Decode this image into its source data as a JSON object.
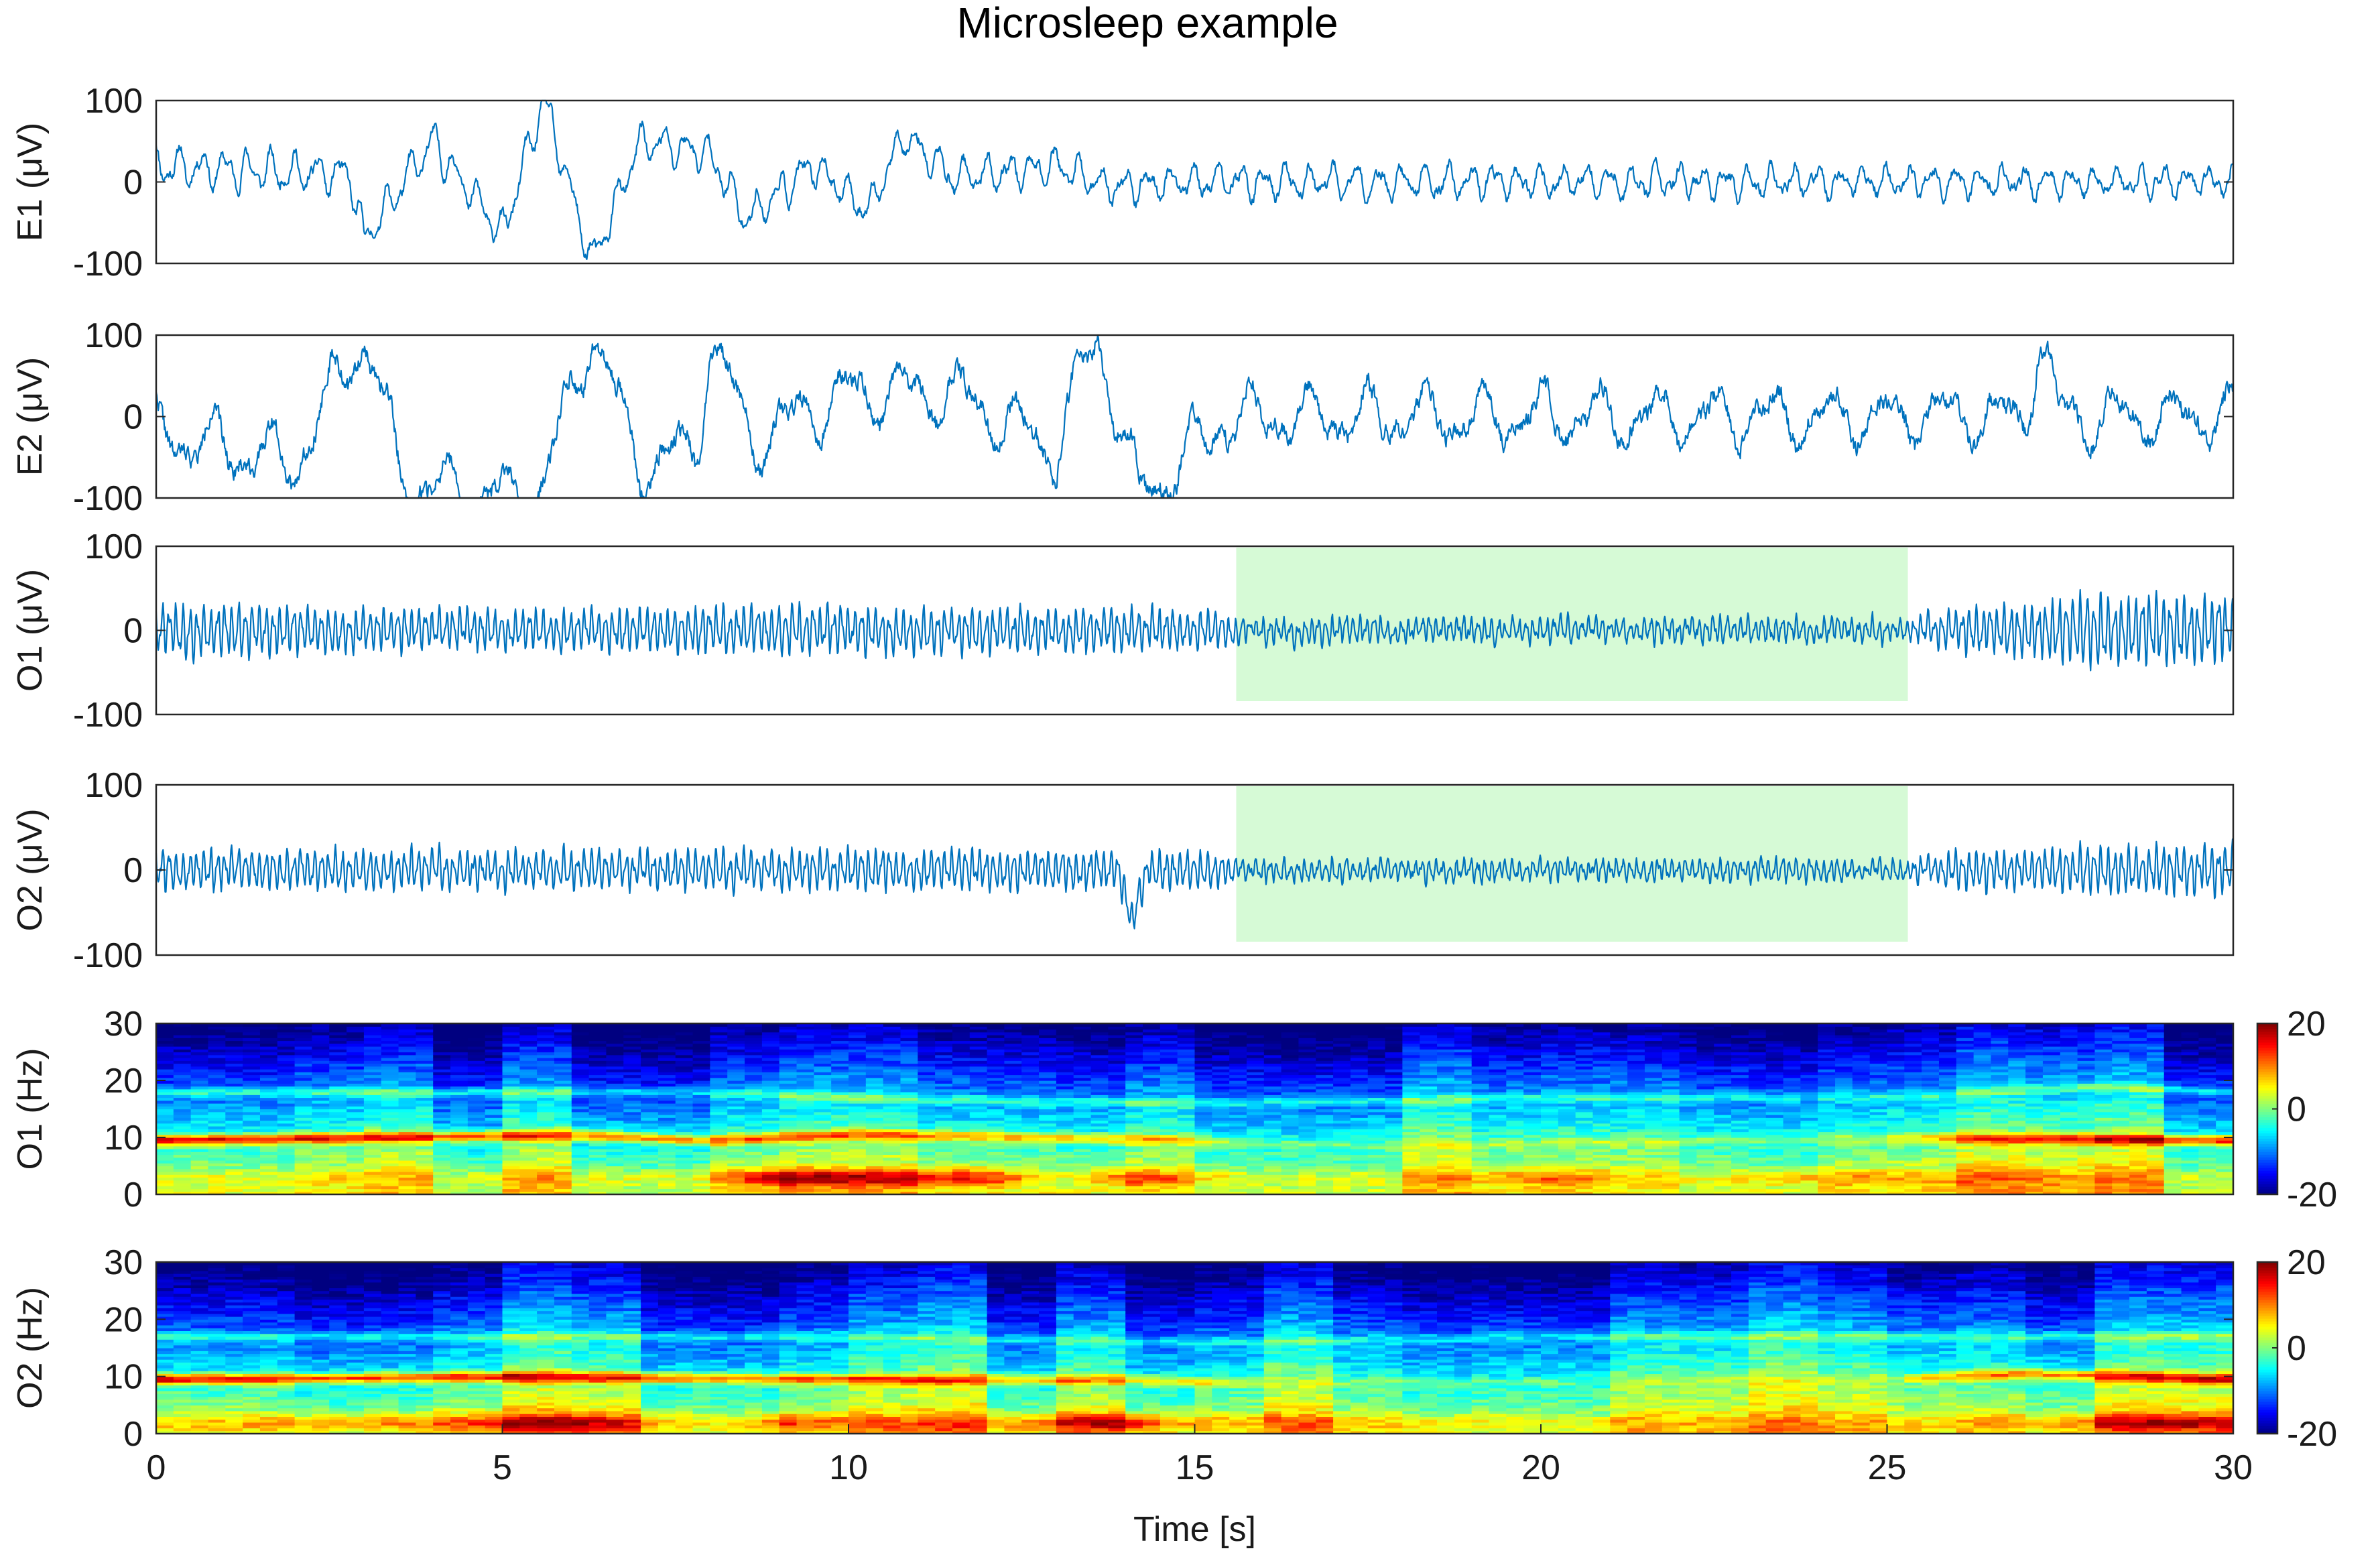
{
  "title": "Microsleep example",
  "colors": {
    "trace": "#0072BD",
    "highlight": "#d6fad6",
    "axis": "#262626",
    "colormap": "jet"
  },
  "chart_data": [
    {
      "type": "line",
      "ylabel": "E1 (μV)",
      "ylim": [
        -100,
        100
      ],
      "yticks": [
        "100",
        "0",
        "-100"
      ],
      "xlim": [
        0,
        30
      ],
      "series": [
        {
          "seed": 11,
          "envelope": [
            [
              0,
              20
            ],
            [
              2.8,
              8
            ],
            [
              3,
              -70
            ],
            [
              4,
              50
            ],
            [
              5,
              -65
            ],
            [
              5.6,
              100
            ],
            [
              6.3,
              -100
            ],
            [
              7,
              50
            ],
            [
              8,
              35
            ],
            [
              8.5,
              -45
            ],
            [
              9.5,
              20
            ],
            [
              10.3,
              -35
            ],
            [
              10.8,
              60
            ],
            [
              11.5,
              5
            ],
            [
              13,
              20
            ],
            [
              13.7,
              -5
            ],
            [
              15,
              0
            ],
            [
              30,
              0
            ]
          ],
          "wave": [
            [
              0,
              25
            ],
            [
              30,
              18
            ]
          ],
          "freq": [
            [
              0,
              3
            ],
            [
              30,
              3
            ]
          ],
          "noise": [
            [
              0,
              8
            ],
            [
              30,
              8
            ]
          ]
        }
      ]
    },
    {
      "type": "line",
      "ylabel": "E2 (μV)",
      "ylim": [
        -100,
        100
      ],
      "yticks": [
        "100",
        "0",
        "-100"
      ],
      "xlim": [
        0,
        30
      ],
      "series": [
        {
          "seed": 22,
          "envelope": [
            [
              0,
              -20
            ],
            [
              2,
              -55
            ],
            [
              3,
              100
            ],
            [
              3.5,
              -60
            ],
            [
              4,
              -90
            ],
            [
              5.5,
              -100
            ],
            [
              6.3,
              100
            ],
            [
              7,
              -60
            ],
            [
              7.8,
              -40
            ],
            [
              8,
              100
            ],
            [
              8.6,
              -30
            ],
            [
              10,
              30
            ],
            [
              11.5,
              30
            ],
            [
              13,
              -40
            ],
            [
              13.6,
              100
            ],
            [
              14.2,
              -100
            ],
            [
              15.5,
              0
            ],
            [
              27,
              0
            ],
            [
              27.2,
              100
            ],
            [
              27.5,
              0
            ],
            [
              30,
              0
            ]
          ],
          "wave": [
            [
              0,
              40
            ],
            [
              15,
              40
            ],
            [
              30,
              35
            ]
          ],
          "freq": [
            [
              0,
              1.2
            ],
            [
              30,
              1.2
            ]
          ],
          "noise": [
            [
              0,
              14
            ],
            [
              30,
              14
            ]
          ]
        }
      ]
    },
    {
      "type": "line",
      "ylabel": "O1 (μV)",
      "ylim": [
        -100,
        100
      ],
      "yticks": [
        "100",
        "0",
        "-100"
      ],
      "xlim": [
        0,
        30
      ],
      "highlight": [
        15.6,
        25.3
      ],
      "series": [
        {
          "seed": 33,
          "envelope": [
            [
              0,
              0
            ],
            [
              30,
              0
            ]
          ],
          "wave": [
            [
              0,
              32
            ],
            [
              5,
              22
            ],
            [
              9,
              28
            ],
            [
              15,
              24
            ],
            [
              15.6,
              14
            ],
            [
              25.3,
              14
            ],
            [
              26,
              22
            ],
            [
              28,
              42
            ],
            [
              30,
              40
            ]
          ],
          "freq": [
            [
              0,
              10
            ],
            [
              30,
              10
            ]
          ],
          "noise": [
            [
              0,
              8
            ],
            [
              30,
              8
            ]
          ]
        }
      ]
    },
    {
      "type": "line",
      "ylabel": "O2 (μV)",
      "ylim": [
        -100,
        100
      ],
      "yticks": [
        "100",
        "0",
        "-100"
      ],
      "xlim": [
        0,
        30
      ],
      "highlight": [
        15.6,
        25.3
      ],
      "series": [
        {
          "seed": 44,
          "envelope": [
            [
              0,
              0
            ],
            [
              13.9,
              0
            ],
            [
              14.1,
              -60
            ],
            [
              14.3,
              0
            ],
            [
              30,
              0
            ]
          ],
          "wave": [
            [
              0,
              22
            ],
            [
              15,
              22
            ],
            [
              15.6,
              12
            ],
            [
              25.3,
              12
            ],
            [
              26,
              22
            ],
            [
              30,
              30
            ]
          ],
          "freq": [
            [
              0,
              10
            ],
            [
              30,
              10
            ]
          ],
          "noise": [
            [
              0,
              7
            ],
            [
              30,
              7
            ]
          ]
        }
      ]
    },
    {
      "type": "heatmap",
      "ylabel": "O1 (Hz)",
      "ylim": [
        0,
        30
      ],
      "yticks": [
        "30",
        "20",
        "10",
        "0"
      ],
      "xlim": [
        0,
        30
      ],
      "clim": [
        -20,
        20
      ],
      "colorbar_ticks": [
        "20",
        "0",
        "-20"
      ],
      "seed": 55,
      "ridges": [
        {
          "path": [
            [
              0,
              9.5
            ],
            [
              3,
              10
            ],
            [
              6,
              10.5
            ],
            [
              8,
              9.5
            ],
            [
              10,
              10.5
            ],
            [
              13,
              10
            ],
            [
              15,
              9.5
            ],
            [
              16,
              9
            ],
            [
              18,
              8.5
            ],
            [
              20,
              9
            ],
            [
              25,
              10
            ],
            [
              30,
              9.5
            ]
          ],
          "amp": [
            [
              0,
              20
            ],
            [
              8,
              15
            ],
            [
              15,
              10
            ],
            [
              16,
              4
            ],
            [
              25,
              4
            ],
            [
              26,
              12
            ],
            [
              30,
              20
            ]
          ],
          "width": 0.9
        },
        {
          "path": [
            [
              0,
              18
            ],
            [
              8,
              18
            ],
            [
              10,
              17
            ],
            [
              15,
              16
            ],
            [
              20,
              17
            ],
            [
              25,
              17
            ],
            [
              28,
              19
            ],
            [
              30,
              18
            ]
          ],
          "amp": [
            [
              0,
              8
            ],
            [
              15,
              6
            ],
            [
              25,
              5
            ],
            [
              30,
              8
            ]
          ],
          "width": 0.8
        },
        {
          "path": [
            [
              0,
              3
            ],
            [
              30,
              3
            ]
          ],
          "amp": [
            [
              0,
              2
            ],
            [
              8,
              4
            ],
            [
              9,
              14
            ],
            [
              12,
              12
            ],
            [
              13,
              2
            ],
            [
              14,
              10
            ],
            [
              15,
              6
            ],
            [
              16,
              2
            ],
            [
              19,
              4
            ],
            [
              20,
              8
            ],
            [
              22,
              2
            ],
            [
              24,
              6
            ],
            [
              30,
              2
            ]
          ],
          "width": 1.5
        }
      ]
    },
    {
      "type": "heatmap",
      "ylabel": "O2 (Hz)",
      "ylim": [
        0,
        30
      ],
      "yticks": [
        "30",
        "20",
        "10",
        "0"
      ],
      "xlim": [
        0,
        30
      ],
      "clim": [
        -20,
        20
      ],
      "colorbar_ticks": [
        "20",
        "0",
        "-20"
      ],
      "xticks": [
        "0",
        "5",
        "10",
        "15",
        "20",
        "25",
        "30"
      ],
      "xlabel": "Time [s]",
      "seed": 66,
      "ridges": [
        {
          "path": [
            [
              0,
              9.5
            ],
            [
              5,
              10
            ],
            [
              10,
              9.5
            ],
            [
              14,
              9.5
            ],
            [
              15,
              9
            ],
            [
              20,
              9
            ],
            [
              25,
              9.5
            ],
            [
              27,
              10.5
            ],
            [
              30,
              9.5
            ]
          ],
          "amp": [
            [
              0,
              20
            ],
            [
              10,
              15
            ],
            [
              15,
              10
            ],
            [
              16,
              3
            ],
            [
              25,
              3
            ],
            [
              26,
              12
            ],
            [
              30,
              18
            ]
          ],
          "width": 0.9
        },
        {
          "path": [
            [
              0,
              17
            ],
            [
              10,
              17
            ],
            [
              15,
              16
            ],
            [
              20,
              17
            ],
            [
              25,
              17
            ],
            [
              30,
              17
            ]
          ],
          "amp": [
            [
              0,
              7
            ],
            [
              15,
              5
            ],
            [
              30,
              7
            ]
          ],
          "width": 0.8
        },
        {
          "path": [
            [
              0,
              2
            ],
            [
              30,
              2
            ]
          ],
          "amp": [
            [
              0,
              4
            ],
            [
              5,
              10
            ],
            [
              6,
              12
            ],
            [
              8,
              4
            ],
            [
              9,
              10
            ],
            [
              11,
              5
            ],
            [
              13,
              10
            ],
            [
              14,
              14
            ],
            [
              15,
              6
            ],
            [
              20,
              3
            ],
            [
              25,
              2
            ],
            [
              27,
              4
            ],
            [
              29,
              12
            ],
            [
              30,
              8
            ]
          ],
          "width": 1.5
        }
      ]
    }
  ]
}
